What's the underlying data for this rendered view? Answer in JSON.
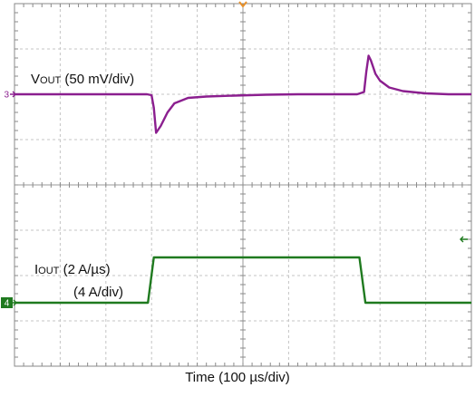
{
  "chart_data": {
    "type": "line",
    "title": "",
    "xlabel": "Time (100 µs/div)",
    "ylabel": "",
    "grid": true,
    "x_divisions": 10,
    "y_divisions": 8,
    "xlim": [
      0,
      10
    ],
    "ylim": [
      -4,
      4
    ],
    "trigger_marker_color": "#e8902a",
    "series": [
      {
        "name": "Vout",
        "label_main": "V",
        "label_sub": "OUT",
        "label_rest": " (50 mV/div)",
        "channel": "3",
        "color": "#8b1f8f",
        "x": [
          0,
          2.9,
          3.0,
          3.05,
          3.1,
          3.2,
          3.35,
          3.5,
          3.8,
          4.2,
          4.8,
          5.5,
          6.2,
          7.0,
          7.5,
          7.65,
          7.7,
          7.75,
          7.8,
          7.9,
          8.0,
          8.2,
          8.5,
          9.0,
          9.5,
          10.0
        ],
        "y": [
          2.0,
          2.0,
          1.98,
          1.7,
          1.15,
          1.3,
          1.6,
          1.8,
          1.92,
          1.95,
          1.97,
          1.99,
          2.0,
          2.0,
          2.0,
          2.05,
          2.5,
          2.85,
          2.75,
          2.45,
          2.3,
          2.15,
          2.07,
          2.02,
          2.0,
          2.0
        ]
      },
      {
        "name": "Iout",
        "label_main": "I",
        "label_sub": "OUT",
        "label_rest": " (2 A/µs)",
        "label_line2": "(4 A/div)",
        "channel": "4",
        "color": "#1f7a1f",
        "x": [
          0,
          2.92,
          3.05,
          7.55,
          7.68,
          10.0
        ],
        "y": [
          -2.6,
          -2.6,
          -1.6,
          -1.6,
          -2.6,
          -2.6
        ]
      }
    ]
  }
}
